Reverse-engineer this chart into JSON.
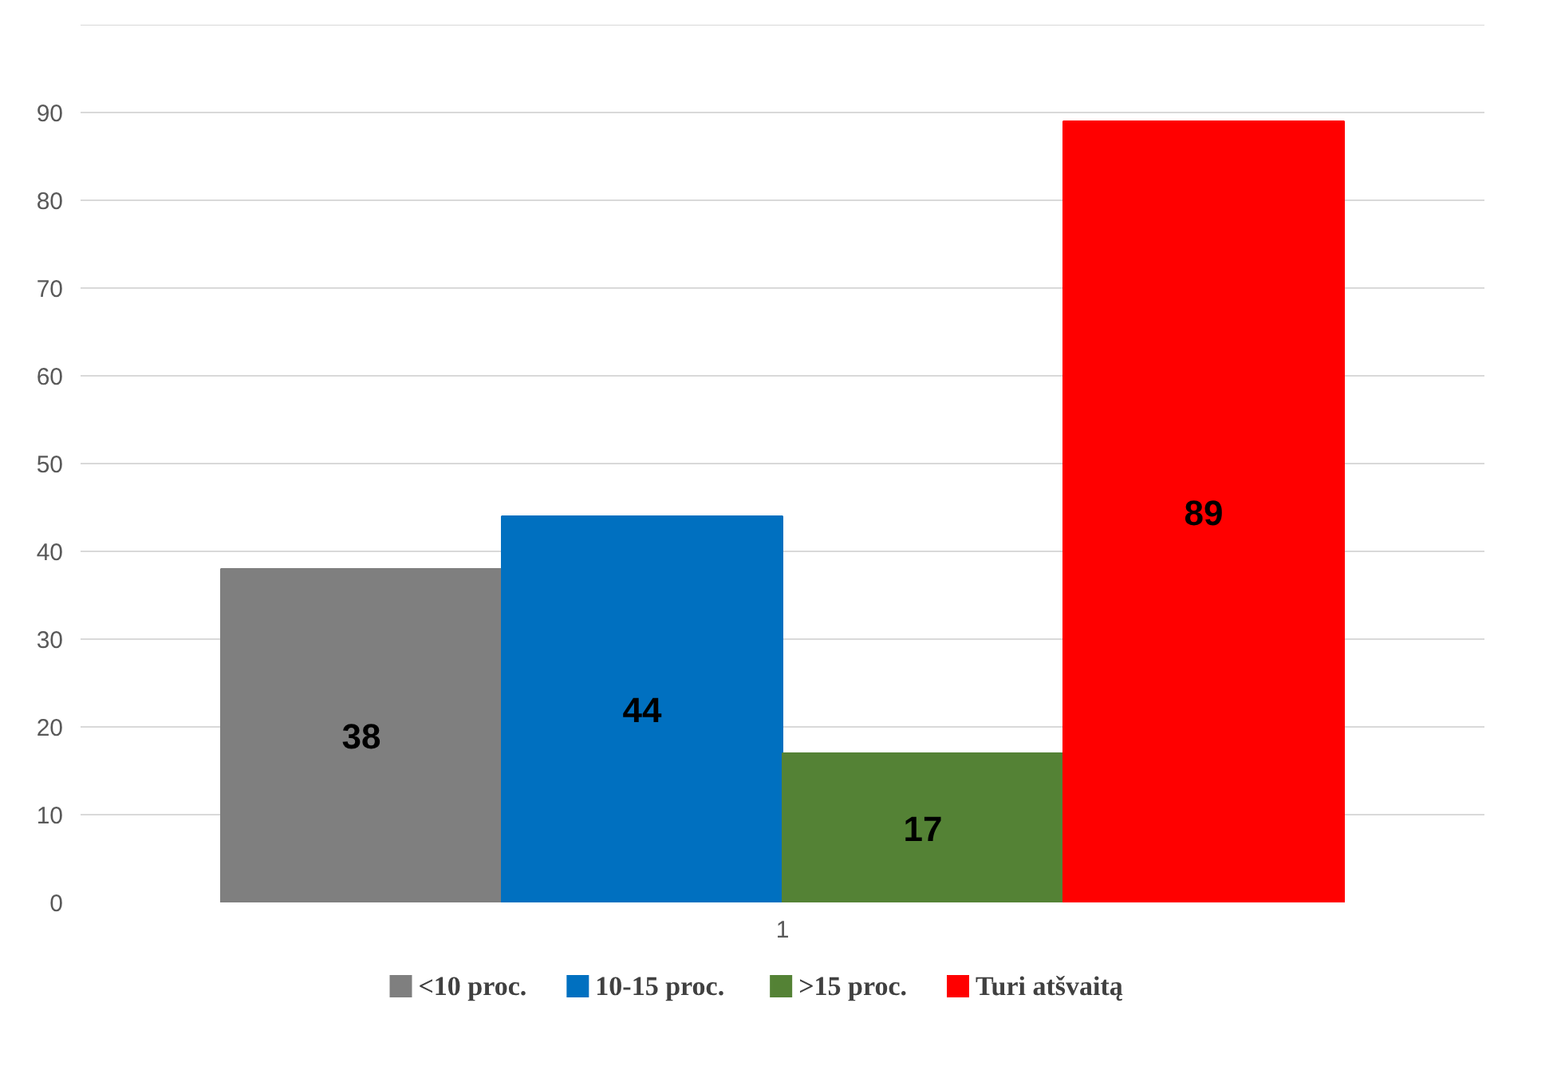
{
  "chart_data": {
    "type": "bar",
    "categories": [
      "1"
    ],
    "series": [
      {
        "name": "<10 proc.",
        "color": "#7f7f7f",
        "values": [
          38
        ]
      },
      {
        "name": "10-15 proc.",
        "color": "#0070c0",
        "values": [
          44
        ]
      },
      {
        "name": ">15 proc.",
        "color": "#548235",
        "values": [
          17
        ]
      },
      {
        "name": "Turi atšvaitą",
        "color": "#ff0000",
        "values": [
          89
        ]
      }
    ],
    "ylim": [
      0,
      100
    ],
    "yticks": [
      0,
      10,
      20,
      30,
      40,
      50,
      60,
      70,
      80,
      90,
      {
        "value": 100,
        "label": null
      }
    ],
    "grid": "y",
    "legend": "bottom",
    "data_labels": true
  }
}
